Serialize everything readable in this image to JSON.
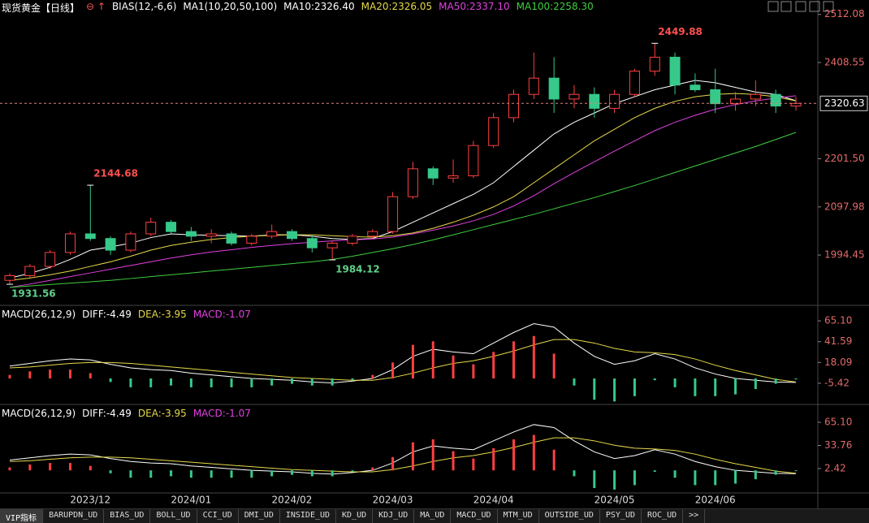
{
  "header": {
    "symbol": "现货黄金【日线】",
    "indicator": "BIAS(12,-6,6)",
    "ma_set": "MA1(10,20,50,100)"
  },
  "chart_data": [
    {
      "type": "candlestick",
      "categories": [
        null,
        null,
        null,
        null,
        "2023/12",
        null,
        null,
        null,
        null,
        "2024/01",
        null,
        null,
        null,
        null,
        "2024/02",
        null,
        null,
        null,
        null,
        "2024/03",
        null,
        null,
        null,
        null,
        "2024/04",
        null,
        null,
        null,
        null,
        null,
        "2024/05",
        null,
        null,
        null,
        null,
        "2024/06",
        null,
        null,
        null,
        null
      ],
      "open": [
        1940,
        1950,
        1970,
        2000,
        2040,
        2030,
        2005,
        2040,
        2065,
        2045,
        2035,
        2040,
        2020,
        2035,
        2045,
        2030,
        2010,
        2020,
        2035,
        2045,
        2120,
        2180,
        2160,
        2165,
        2230,
        2290,
        2340,
        2375,
        2330,
        2340,
        2310,
        2340,
        2390,
        2420,
        2360,
        2350,
        2320,
        2330,
        2340,
        2315
      ],
      "high": [
        1955,
        1975,
        2005,
        2045,
        2144.68,
        2035,
        2045,
        2075,
        2070,
        2055,
        2050,
        2045,
        2040,
        2060,
        2050,
        2035,
        2025,
        2040,
        2050,
        2130,
        2195,
        2185,
        2200,
        2240,
        2300,
        2350,
        2430,
        2420,
        2360,
        2355,
        2350,
        2395,
        2449.88,
        2430,
        2385,
        2395,
        2345,
        2370,
        2350,
        2335
      ],
      "low": [
        1931.56,
        1945,
        1965,
        1995,
        2025,
        1995,
        2000,
        2035,
        2040,
        2025,
        2020,
        2015,
        2015,
        2030,
        2025,
        2000,
        1984.12,
        2015,
        2030,
        2040,
        2115,
        2145,
        2150,
        2160,
        2225,
        2280,
        2330,
        2300,
        2310,
        2290,
        2300,
        2335,
        2380,
        2340,
        2345,
        2300,
        2305,
        2315,
        2300,
        2305
      ],
      "close": [
        1950,
        1970,
        2000,
        2040,
        2030,
        2005,
        2040,
        2065,
        2045,
        2035,
        2040,
        2020,
        2035,
        2045,
        2030,
        2010,
        2020,
        2035,
        2045,
        2120,
        2180,
        2160,
        2165,
        2230,
        2290,
        2340,
        2375,
        2330,
        2340,
        2310,
        2340,
        2390,
        2420,
        2360,
        2350,
        2320,
        2330,
        2340,
        2315,
        2320.63
      ],
      "up_color": "#ff4040",
      "down_color": "#36c98a",
      "series": [
        {
          "name": "MA10:2326.40",
          "color": "#ffffff",
          "values": [
            1945,
            1955,
            1968,
            1985,
            2005,
            2012,
            2020,
            2032,
            2040,
            2038,
            2037,
            2036,
            2035,
            2038,
            2038,
            2035,
            2030,
            2028,
            2030,
            2045,
            2065,
            2085,
            2105,
            2125,
            2150,
            2185,
            2220,
            2255,
            2280,
            2300,
            2320,
            2335,
            2350,
            2360,
            2370,
            2365,
            2355,
            2345,
            2340,
            2326.4
          ]
        },
        {
          "name": "MA20:2326.05",
          "color": "#e6d84a",
          "values": [
            1940,
            1945,
            1952,
            1960,
            1970,
            1980,
            1992,
            2005,
            2015,
            2022,
            2028,
            2032,
            2035,
            2037,
            2038,
            2038,
            2036,
            2034,
            2033,
            2036,
            2042,
            2052,
            2065,
            2080,
            2098,
            2120,
            2150,
            2180,
            2210,
            2240,
            2265,
            2290,
            2310,
            2325,
            2335,
            2340,
            2342,
            2340,
            2335,
            2326.05
          ]
        },
        {
          "name": "MA50:2337.10",
          "color": "#e040e0",
          "values": [
            1925,
            1932,
            1940,
            1948,
            1956,
            1964,
            1972,
            1980,
            1988,
            1995,
            2001,
            2006,
            2011,
            2015,
            2019,
            2022,
            2025,
            2027,
            2029,
            2033,
            2040,
            2048,
            2057,
            2068,
            2082,
            2100,
            2122,
            2148,
            2172,
            2195,
            2218,
            2240,
            2262,
            2280,
            2295,
            2308,
            2318,
            2326,
            2332,
            2337.1
          ]
        },
        {
          "name": "MA100:2258.30",
          "color": "#3fcf3f",
          "values": [
            1925,
            1928,
            1931,
            1934,
            1937,
            1940,
            1944,
            1948,
            1952,
            1956,
            1960,
            1964,
            1968,
            1972,
            1976,
            1980,
            1985,
            1992,
            2000,
            2008,
            2017,
            2027,
            2038,
            2049,
            2060,
            2071,
            2082,
            2094,
            2106,
            2118,
            2131,
            2144,
            2158,
            2172,
            2186,
            2200,
            2214,
            2228,
            2243,
            2258.3
          ]
        }
      ],
      "ylim": [
        1888,
        2543
      ],
      "yticks": [
        2512.08,
        2408.55,
        {
          "value": 2201.5,
          "label": "2201.50"
        },
        2097.98,
        1994.45
      ]
    },
    {
      "type": "macd",
      "title": "MACD(26,12,9)",
      "up_color": "#ff4040",
      "down_color": "#36c98a",
      "series": [
        {
          "name": "DIFF:-4.49",
          "color": "#ffffff",
          "values": [
            14,
            17,
            20,
            22,
            21,
            16,
            12,
            10,
            9,
            6,
            4,
            2,
            0,
            -1,
            -2,
            -4,
            -5,
            -3,
            0,
            10,
            25,
            33,
            30,
            28,
            40,
            52,
            62,
            58,
            40,
            25,
            16,
            20,
            28,
            22,
            12,
            5,
            0,
            -2,
            -4,
            -4.49
          ]
        },
        {
          "name": "DEA:-3.95",
          "color": "#e6d84a",
          "values": [
            12,
            13,
            15,
            17,
            18,
            18,
            17,
            15,
            13,
            11,
            9,
            7,
            5,
            3,
            1,
            0,
            -1,
            -2,
            -2,
            1,
            6,
            12,
            17,
            20,
            25,
            31,
            38,
            44,
            44,
            40,
            34,
            30,
            29,
            27,
            22,
            15,
            9,
            4,
            -1,
            -3.95
          ]
        },
        {
          "name": "MACD:-1.07",
          "color": "#e040e0",
          "kind": "histogram",
          "values": [
            4,
            8,
            10,
            10,
            6,
            -4,
            -10,
            -10,
            -8,
            -10,
            -10,
            -10,
            -10,
            -8,
            -6,
            -8,
            -8,
            -2,
            4,
            18,
            38,
            42,
            26,
            16,
            30,
            42,
            48,
            28,
            -8,
            -24,
            -26,
            -20,
            -2,
            -10,
            -20,
            -20,
            -18,
            -12,
            -6,
            -1.07
          ]
        }
      ],
      "ylim": [
        -26.6,
        80.8
      ],
      "yticks": [
        {
          "value": 65.1,
          "label": "65.10"
        },
        41.59,
        18.09,
        -5.42
      ]
    },
    {
      "type": "macd",
      "title": "MACD(26,12,9)",
      "legend": [
        "DIFF:-4.49",
        "DEA:-3.95",
        "MACD:-1.07"
      ],
      "ylim": [
        -28.4,
        87.1
      ],
      "yticks": [
        {
          "value": 65.1,
          "label": "65.10"
        },
        33.76,
        2.42
      ]
    }
  ],
  "tabs": [
    "VIP指标",
    "BARUPDN_UD",
    "BIAS_UD",
    "BOLL_UD",
    "CCI_UD",
    "DMI_UD",
    "INSIDE_UD",
    "KD_UD",
    "KDJ_UD",
    "MA_UD",
    "MACD_UD",
    "MTM_UD",
    "OUTSIDE_UD",
    "PSY_UD",
    "ROC_UD",
    ">>"
  ]
}
